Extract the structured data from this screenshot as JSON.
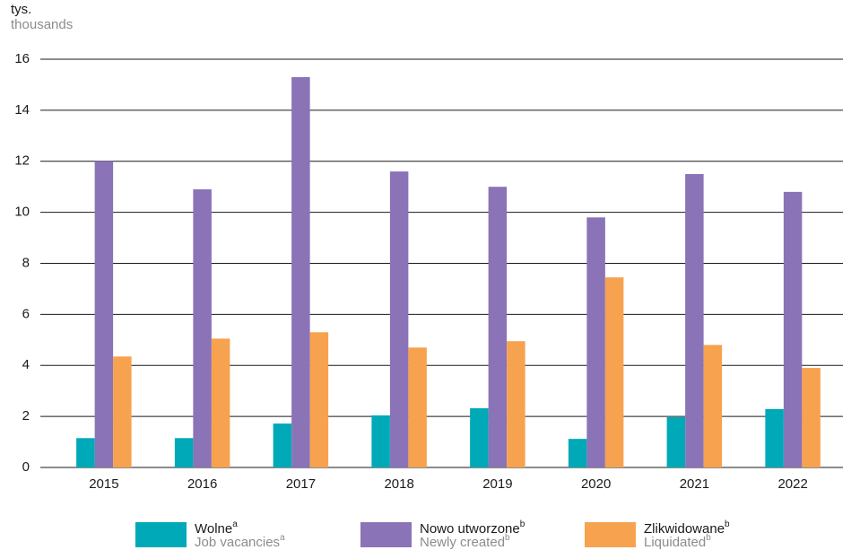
{
  "chart_data": {
    "type": "bar",
    "y_label": "tys.",
    "y_label_en": "thousands",
    "categories": [
      "2015",
      "2016",
      "2017",
      "2018",
      "2019",
      "2020",
      "2021",
      "2022"
    ],
    "series": [
      {
        "name": "Wolne",
        "footnote": "a",
        "name_en": "Job vacancies",
        "footnote_en": "a",
        "color": "#00a9b7",
        "values": [
          1.15,
          1.15,
          1.72,
          2.04,
          2.32,
          1.12,
          1.97,
          2.29
        ]
      },
      {
        "name": "Nowo utworzone",
        "footnote": "b",
        "name_en": "Newly created",
        "footnote_en": "b",
        "color": "#8a73b7",
        "values": [
          12.0,
          10.9,
          15.3,
          11.6,
          11.0,
          9.8,
          11.5,
          10.8
        ]
      },
      {
        "name": "Zlikwidowane",
        "footnote": "b",
        "name_en": "Liquidated",
        "footnote_en": "b",
        "color": "#f7a24f",
        "values": [
          4.35,
          5.05,
          5.3,
          4.7,
          4.95,
          7.45,
          4.8,
          3.9
        ]
      }
    ],
    "ylim": [
      0,
      16
    ],
    "yticks": [
      0,
      2,
      4,
      6,
      8,
      10,
      12,
      14,
      16
    ],
    "grid": true
  }
}
